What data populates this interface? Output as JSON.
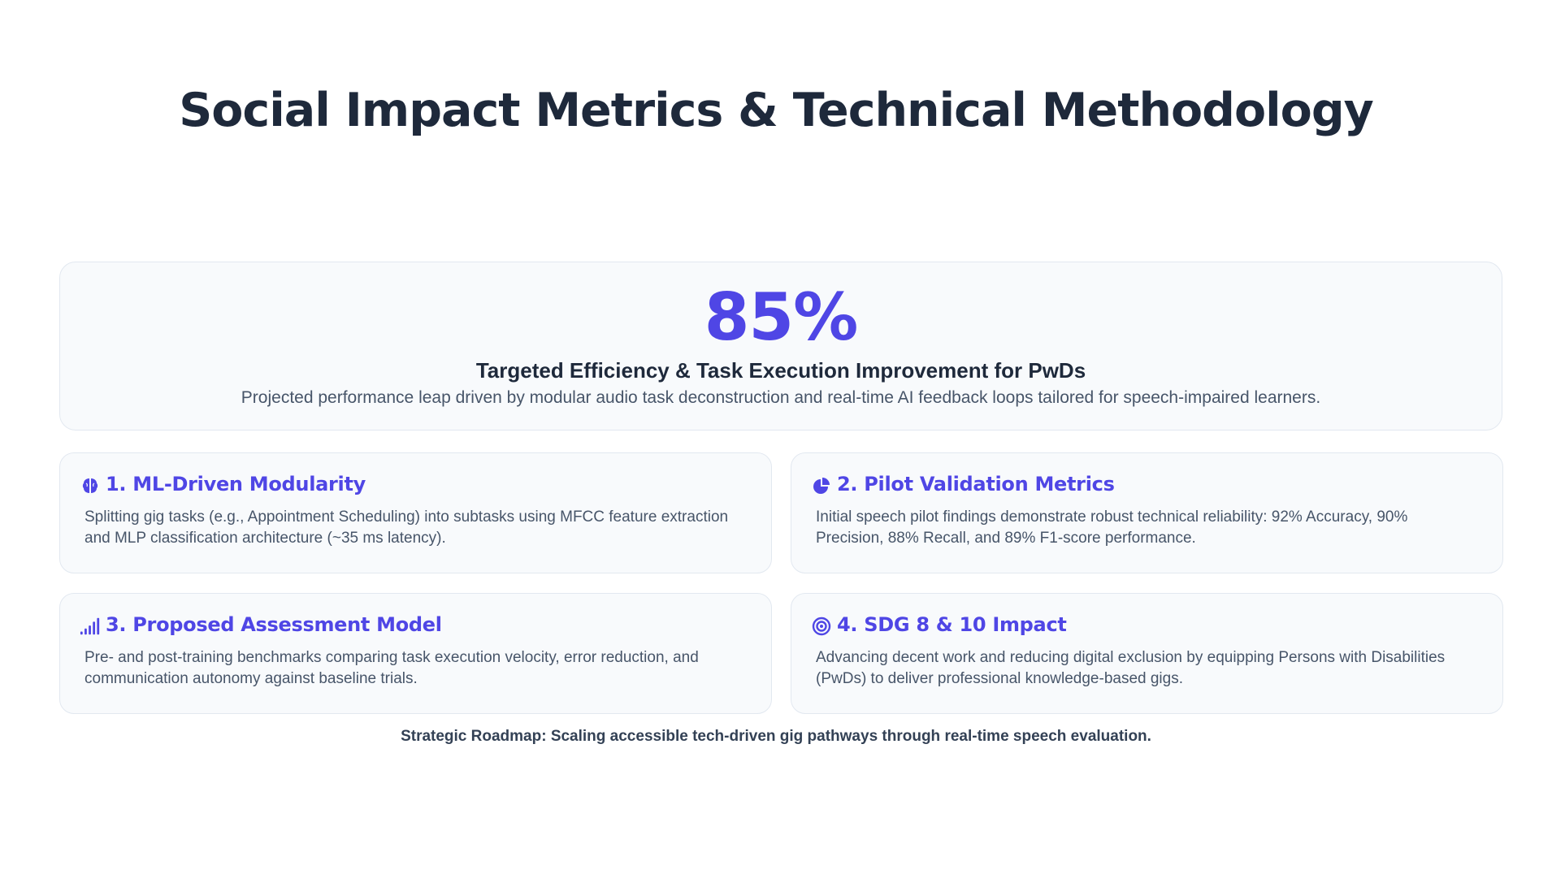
{
  "title": "Social Impact Metrics & Technical Methodology",
  "hero": {
    "value": "85%",
    "heading": "Targeted Efficiency & Task Execution Improvement for PwDs",
    "description": "Projected performance leap driven by modular audio task deconstruction and real-time AI feedback loops tailored for speech-impaired learners."
  },
  "cards": [
    {
      "icon": "brain-icon",
      "title": "1. ML-Driven Modularity",
      "body": "Splitting gig tasks (e.g., Appointment Scheduling) into subtasks using MFCC feature extraction and MLP classification architecture (~35 ms latency)."
    },
    {
      "icon": "pie-chart-icon",
      "title": "2. Pilot Validation Metrics",
      "body": "Initial speech pilot findings demonstrate robust technical reliability: 92% Accuracy, 90% Precision, 88% Recall, and 89% F1-score performance."
    },
    {
      "icon": "signal-bars-icon",
      "title": "3. Proposed Assessment Model",
      "body": "Pre- and post-training benchmarks comparing task execution velocity, error reduction, and communication autonomy against baseline trials."
    },
    {
      "icon": "target-icon",
      "title": "4. SDG 8 & 10 Impact",
      "body": "Advancing decent work and reducing digital exclusion by equipping Persons with Disabilities (PwDs) to deliver professional knowledge-based gigs."
    }
  ],
  "footer": "Strategic Roadmap: Scaling accessible tech-driven gig pathways through real-time speech evaluation.",
  "colors": {
    "accent": "#4f46e5",
    "heading": "#1e293b",
    "body_text": "#475569",
    "card_background": "#f8fafc",
    "card_border": "#e2e8f0"
  }
}
